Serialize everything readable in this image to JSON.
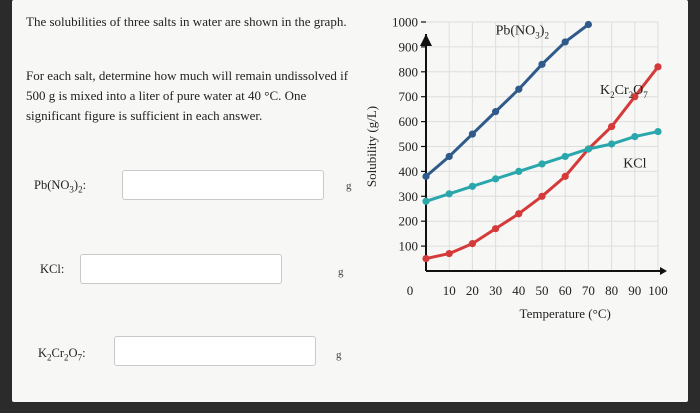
{
  "question": {
    "intro": "The solubilities of three salts in water are shown in the graph.",
    "instructions": "For each salt, determine how much will remain undissolved if 500 g is mixed into a liter of pure water at 40 °C. One significant figure is sufficient in each answer."
  },
  "answers": [
    {
      "label": "Pb(NO3)2:",
      "formula_parts": [
        [
          "Pb(NO",
          false
        ],
        [
          "3",
          true
        ],
        [
          ")",
          false
        ],
        [
          "2",
          true
        ],
        [
          ":",
          false
        ]
      ],
      "value": "",
      "unit": "g"
    },
    {
      "label": "KCl:",
      "formula_parts": [
        [
          "KCl:",
          false
        ]
      ],
      "value": "",
      "unit": "g"
    },
    {
      "label": "K2Cr2O7:",
      "formula_parts": [
        [
          "K",
          false
        ],
        [
          "2",
          true
        ],
        [
          "Cr",
          false
        ],
        [
          "2",
          true
        ],
        [
          "O",
          false
        ],
        [
          "7",
          true
        ],
        [
          ":",
          false
        ]
      ],
      "value": "",
      "unit": "g"
    }
  ],
  "chart_data": {
    "type": "line",
    "title": "",
    "xlabel": "Temperature (°C)",
    "ylabel": "Solubility (g/L)",
    "xlim": [
      0,
      100
    ],
    "ylim": [
      0,
      1000
    ],
    "x_ticks": [
      0,
      10,
      20,
      30,
      40,
      50,
      60,
      70,
      80,
      90,
      100
    ],
    "x_tick_labels": [
      "0",
      "10",
      "20",
      "30",
      "40",
      "50",
      "60",
      "70",
      "80",
      "90",
      "100"
    ],
    "y_ticks": [
      100,
      200,
      300,
      400,
      500,
      600,
      700,
      800,
      900,
      1000
    ],
    "y_tick_labels": [
      "100",
      "200",
      "300",
      "400",
      "500",
      "600",
      "700",
      "800",
      "900",
      "1000"
    ],
    "grid": true,
    "series": [
      {
        "name": "Pb(NO3)2",
        "label_parts": [
          [
            "Pb(NO",
            false
          ],
          [
            "3",
            true
          ],
          [
            ")",
            false
          ],
          [
            "2",
            true
          ]
        ],
        "color": "#2f5a8a",
        "x": [
          0,
          10,
          20,
          30,
          40,
          50,
          60,
          70
        ],
        "y": [
          380,
          460,
          550,
          640,
          730,
          830,
          920,
          990
        ]
      },
      {
        "name": "K2Cr2O7",
        "label_parts": [
          [
            "K",
            false
          ],
          [
            "2",
            true
          ],
          [
            "Cr",
            false
          ],
          [
            "2",
            true
          ],
          [
            "O",
            false
          ],
          [
            "7",
            true
          ]
        ],
        "color": "#d53a3a",
        "x": [
          0,
          10,
          20,
          30,
          40,
          50,
          60,
          70,
          80,
          90,
          100
        ],
        "y": [
          50,
          70,
          110,
          170,
          230,
          300,
          380,
          490,
          580,
          700,
          820
        ]
      },
      {
        "name": "KCl",
        "label_parts": [
          [
            "KCl",
            false
          ]
        ],
        "color": "#2aa7ad",
        "x": [
          0,
          10,
          20,
          30,
          40,
          50,
          60,
          70,
          80,
          90,
          100
        ],
        "y": [
          280,
          310,
          340,
          370,
          400,
          430,
          460,
          490,
          510,
          540,
          560
        ]
      }
    ]
  }
}
